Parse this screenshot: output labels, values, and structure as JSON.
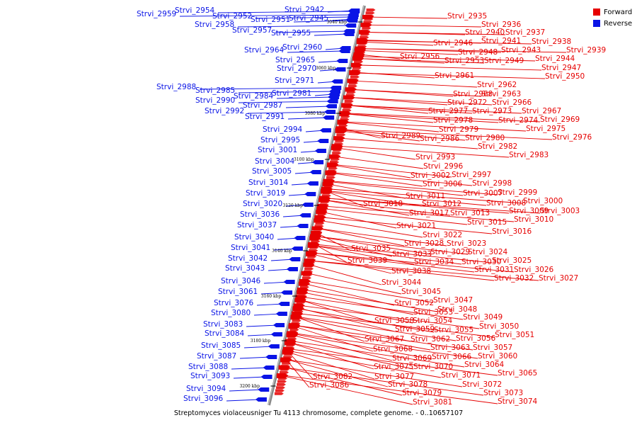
{
  "legend": {
    "forward_label": "Forward",
    "reverse_label": "Reverse"
  },
  "colors": {
    "forward": "#e60000",
    "reverse": "#0a14e6",
    "backbone": "#888888"
  },
  "caption": "Streptomyces violaceusniger Tu 4113 chromosome, complete genome. - 0..10657107",
  "ticks": [
    "3040 kbp",
    "3060 kbp",
    "3080 kbp",
    "3100 kbp",
    "3120 kbp",
    "3140 kbp",
    "3160 kbp",
    "3180 kbp",
    "3200 kbp"
  ],
  "reverse_genes": [
    "Strvi_2959",
    "Strvi_2954",
    "Strvi_2952",
    "Strvi_2958",
    "Strvi_2951",
    "Strvi_2957",
    "Strvi_2942",
    "Strvi_2945",
    "Strvi_2955",
    "Strvi_2964",
    "Strvi_2960",
    "Strvi_2965",
    "Strvi_2970",
    "Strvi_2971",
    "Strvi_2988",
    "Strvi_2985",
    "Strvi_2984",
    "Strvi_2990",
    "Strvi_2981",
    "Strvi_2987",
    "Strvi_2992",
    "Strvi_2991",
    "Strvi_2994",
    "Strvi_2995",
    "Strvi_3001",
    "Strvi_3004",
    "Strvi_3005",
    "Strvi_3014",
    "Strvi_3019",
    "Strvi_3020",
    "Strvi_3036",
    "Strvi_3037",
    "Strvi_3040",
    "Strvi_3041",
    "Strvi_3042",
    "Strvi_3043",
    "Strvi_3046",
    "Strvi_3061",
    "Strvi_3076",
    "Strvi_3080",
    "Strvi_3083",
    "Strvi_3084",
    "Strvi_3085",
    "Strvi_3087",
    "Strvi_3088",
    "Strvi_3093",
    "Strvi_3094",
    "Strvi_3096"
  ],
  "forward_genes": [
    "Strvi_2935",
    "Strvi_2936",
    "Strvi_2940",
    "Strvi_2937",
    "Strvi_2938",
    "Strvi_2946",
    "Strvi_2941",
    "Strvi_2943",
    "Strvi_2939",
    "Strvi_2948",
    "Strvi_2956",
    "Strvi_2953",
    "Strvi_2949",
    "Strvi_2944",
    "Strvi_2947",
    "Strvi_2961",
    "Strvi_2950",
    "Strvi_2962",
    "Strvi_2968",
    "Strvi_2963",
    "Strvi_2972",
    "Strvi_2966",
    "Strvi_2977",
    "Strvi_2973",
    "Strvi_2967",
    "Strvi_2978",
    "Strvi_2974",
    "Strvi_2969",
    "Strvi_2979",
    "Strvi_2975",
    "Strvi_2989",
    "Strvi_2986",
    "Strvi_2980",
    "Strvi_2976",
    "Strvi_2982",
    "Strvi_2983",
    "Strvi_2993",
    "Strvi_2996",
    "Strvi_3002",
    "Strvi_2997",
    "Strvi_3006",
    "Strvi_2998",
    "Strvi_3007",
    "Strvi_2999",
    "Strvi_3011",
    "Strvi_3008",
    "Strvi_3000",
    "Strvi_3018",
    "Strvi_3012",
    "Strvi_3009",
    "Strvi_3003",
    "Strvi_3017",
    "Strvi_3013",
    "Strvi_3010",
    "Strvi_3015",
    "Strvi_3021",
    "Strvi_3016",
    "Strvi_3022",
    "Strvi_3028",
    "Strvi_3023",
    "Strvi_3035",
    "Strvi_3029",
    "Strvi_3024",
    "Strvi_3033",
    "Strvi_3039",
    "Strvi_3034",
    "Strvi_3030",
    "Strvi_3025",
    "Strvi_3038",
    "Strvi_3031",
    "Strvi_3026",
    "Strvi_3032",
    "Strvi_3027",
    "Strvi_3044",
    "Strvi_3045",
    "Strvi_3047",
    "Strvi_3052",
    "Strvi_3048",
    "Strvi_3053",
    "Strvi_3058",
    "Strvi_3054",
    "Strvi_3049",
    "Strvi_3050",
    "Strvi_3059",
    "Strvi_3055",
    "Strvi_3067",
    "Strvi_3062",
    "Strvi_3056",
    "Strvi_3051",
    "Strvi_3063",
    "Strvi_3057",
    "Strvi_3068",
    "Strvi_3066",
    "Strvi_3060",
    "Strvi_3069",
    "Strvi_3064",
    "Strvi_3075",
    "Strvi_3070",
    "Strvi_3065",
    "Strvi_3082",
    "Strvi_3077",
    "Strvi_3071",
    "Strvi_3086",
    "Strvi_3078",
    "Strvi_3072",
    "Strvi_3079",
    "Strvi_3073",
    "Strvi_3081",
    "Strvi_3074"
  ]
}
